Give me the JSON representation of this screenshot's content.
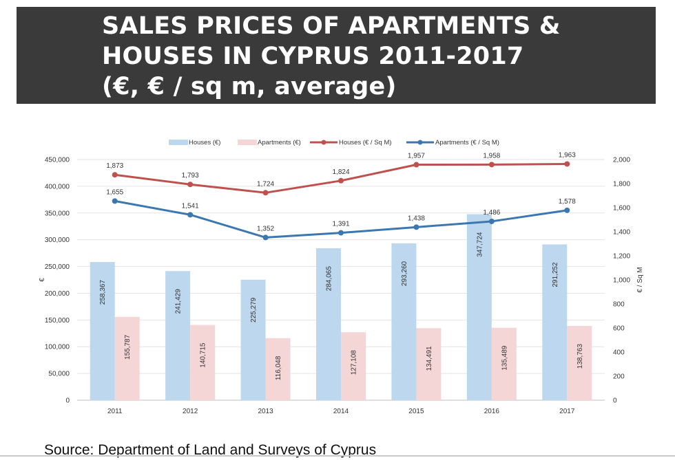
{
  "title": {
    "line1": "SALES PRICES OF APARTMENTS &",
    "line2": "HOUSES IN CYPRUS 2011-2017",
    "line3": "(€, € / sq m, average)"
  },
  "source": "Source: Department of Land and Surveys of Cyprus",
  "chart_data": {
    "type": "bar",
    "categories": [
      "2011",
      "2012",
      "2013",
      "2014",
      "2015",
      "2016",
      "2017"
    ],
    "ylabel": "€",
    "y2label": "€ / Sq M",
    "ylim": [
      0,
      450000
    ],
    "y2lim": [
      0,
      2000
    ],
    "yticks": [
      "0",
      "50,000",
      "100,000",
      "150,000",
      "200,000",
      "250,000",
      "300,000",
      "350,000",
      "400,000",
      "450,000"
    ],
    "y2ticks": [
      "0",
      "200",
      "400",
      "600",
      "800",
      "1,000",
      "1,200",
      "1,400",
      "1,600",
      "1,800",
      "2,000"
    ],
    "grid": true,
    "legend_position": "top",
    "series": [
      {
        "name": "Houses (€)",
        "kind": "bar",
        "axis": "left",
        "color": "#bdd7ee",
        "values": [
          258367,
          241429,
          225279,
          284065,
          293260,
          347724,
          291252
        ],
        "labels": [
          "258,367",
          "241,429",
          "225,279",
          "284,065",
          "293,260",
          "347,724",
          "291,252"
        ]
      },
      {
        "name": "Apartments (€)",
        "kind": "bar",
        "axis": "left",
        "color": "#f4d6d6",
        "values": [
          155787,
          140715,
          116048,
          127108,
          134491,
          135489,
          138763
        ],
        "labels": [
          "155,787",
          "140,715",
          "116,048",
          "127,108",
          "134,491",
          "135,489",
          "138,763"
        ]
      },
      {
        "name": "Houses (€ / Sq M)",
        "kind": "line",
        "axis": "right",
        "color": "#c0504d",
        "values": [
          1873,
          1793,
          1724,
          1824,
          1957,
          1958,
          1963
        ],
        "labels": [
          "1,873",
          "1,793",
          "1,724",
          "1,824",
          "1,957",
          "1,958",
          "1,963"
        ]
      },
      {
        "name": "Apartments (€ / Sq M)",
        "kind": "line",
        "axis": "right",
        "color": "#3b77b0",
        "values": [
          1655,
          1541,
          1352,
          1391,
          1438,
          1486,
          1578
        ],
        "labels": [
          "1,655",
          "1,541",
          "1,352",
          "1,391",
          "1,438",
          "1,486",
          "1,578"
        ]
      }
    ]
  }
}
